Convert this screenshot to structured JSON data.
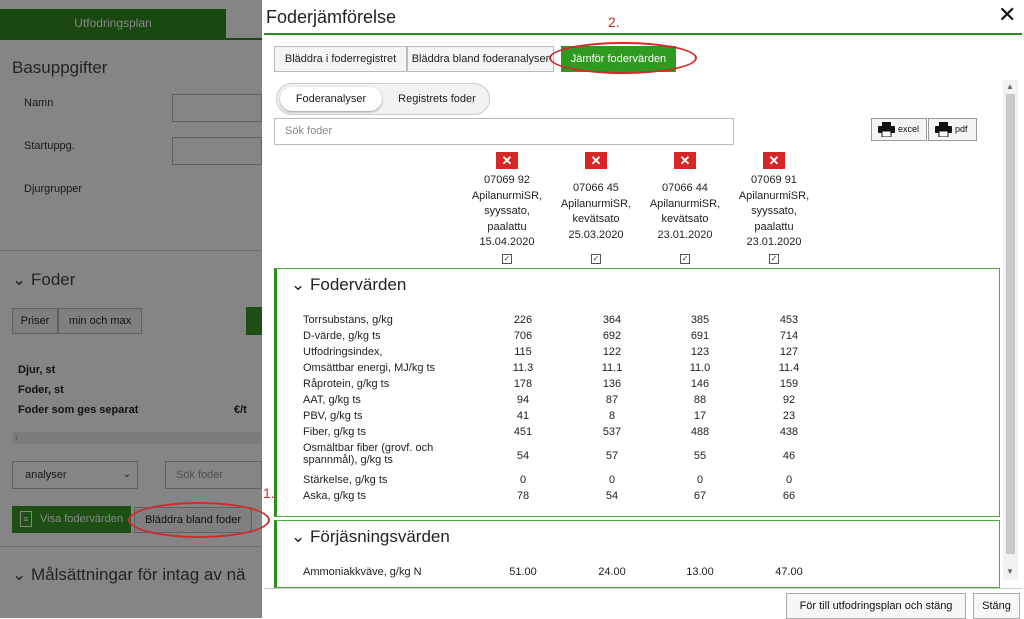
{
  "background": {
    "tab_label": "Utfodringsplan",
    "section_basic": "Basuppgifter",
    "name_label": "Namn",
    "start_label": "Startuppg.",
    "animal_groups_label": "Djurgrupper",
    "section_feed": "Foder",
    "btn_prices": "Priser",
    "btn_minmax": "min och max",
    "animals_label": "Djur, st",
    "feed_label": "Foder, st",
    "separate_label": "Foder som ges separat",
    "unit_label": "€/t",
    "select_value": "analyser",
    "search_placeholder": "Sök foder",
    "btn_show_values": "Visa fodervärden",
    "btn_browse": "Bläddra bland foder",
    "section_goals": "Målsättningar för intag av nä"
  },
  "modal": {
    "title": "Foderjämförelse",
    "close": "✕",
    "tabs": [
      "Bläddra i foderregistret",
      "Bläddra bland foderanalyser",
      "Jämför fodervärden"
    ],
    "sub_tabs": [
      "Foderanalyser",
      "Registrets foder"
    ],
    "search_placeholder": "Sök foder",
    "excel_label": "excel",
    "pdf_label": "pdf",
    "annotation_1": "1.",
    "annotation_2": "2.",
    "feeds": [
      {
        "l1": "07069 92",
        "l2": "ApilanurmiSR,",
        "l3": "syyssato,",
        "l4": "paalattu",
        "l5": "15.04.2020"
      },
      {
        "l1": "07066 45",
        "l2": "ApilanurmiSR,",
        "l3": "kevätsato",
        "l4": "25.03.2020",
        "l5": ""
      },
      {
        "l1": "07066 44",
        "l2": "ApilanurmiSR,",
        "l3": "kevätsato",
        "l4": "23.01.2020",
        "l5": ""
      },
      {
        "l1": "07069 91",
        "l2": "ApilanurmiSR,",
        "l3": "syyssato,",
        "l4": "paalattu",
        "l5": "23.01.2020"
      }
    ],
    "section1_title": "Fodervärden",
    "section1_rows": [
      {
        "label": "Torrsubstans, g/kg",
        "v": [
          "226",
          "364",
          "385",
          "453"
        ]
      },
      {
        "label": "D-värde, g/kg ts",
        "v": [
          "706",
          "692",
          "691",
          "714"
        ]
      },
      {
        "label": "Utfodringsindex,",
        "v": [
          "115",
          "122",
          "123",
          "127"
        ]
      },
      {
        "label": "Omsättbar energi, MJ/kg ts",
        "v": [
          "11.3",
          "11.1",
          "11.0",
          "11.4"
        ]
      },
      {
        "label": "Råprotein, g/kg ts",
        "v": [
          "178",
          "136",
          "146",
          "159"
        ]
      },
      {
        "label": "AAT, g/kg ts",
        "v": [
          "94",
          "87",
          "88",
          "92"
        ]
      },
      {
        "label": "PBV, g/kg ts",
        "v": [
          "41",
          "8",
          "17",
          "23"
        ]
      },
      {
        "label": "Fiber, g/kg ts",
        "v": [
          "451",
          "537",
          "488",
          "438"
        ]
      },
      {
        "label": "Osmältbar fiber (grovf. och spannmål), g/kg ts",
        "v": [
          "54",
          "57",
          "55",
          "46"
        ]
      },
      {
        "label": "Stärkelse, g/kg ts",
        "v": [
          "0",
          "0",
          "0",
          "0"
        ]
      },
      {
        "label": "Aska, g/kg ts",
        "v": [
          "78",
          "54",
          "67",
          "66"
        ]
      }
    ],
    "section2_title": "Förjäsningsvärden",
    "section2_rows": [
      {
        "label": "Ammoniakkväve, g/kg N",
        "v": [
          "51.00",
          "24.00",
          "13.00",
          "47.00"
        ]
      }
    ],
    "btn_go": "För till utfodringsplan och stäng",
    "btn_close": "Stäng"
  }
}
